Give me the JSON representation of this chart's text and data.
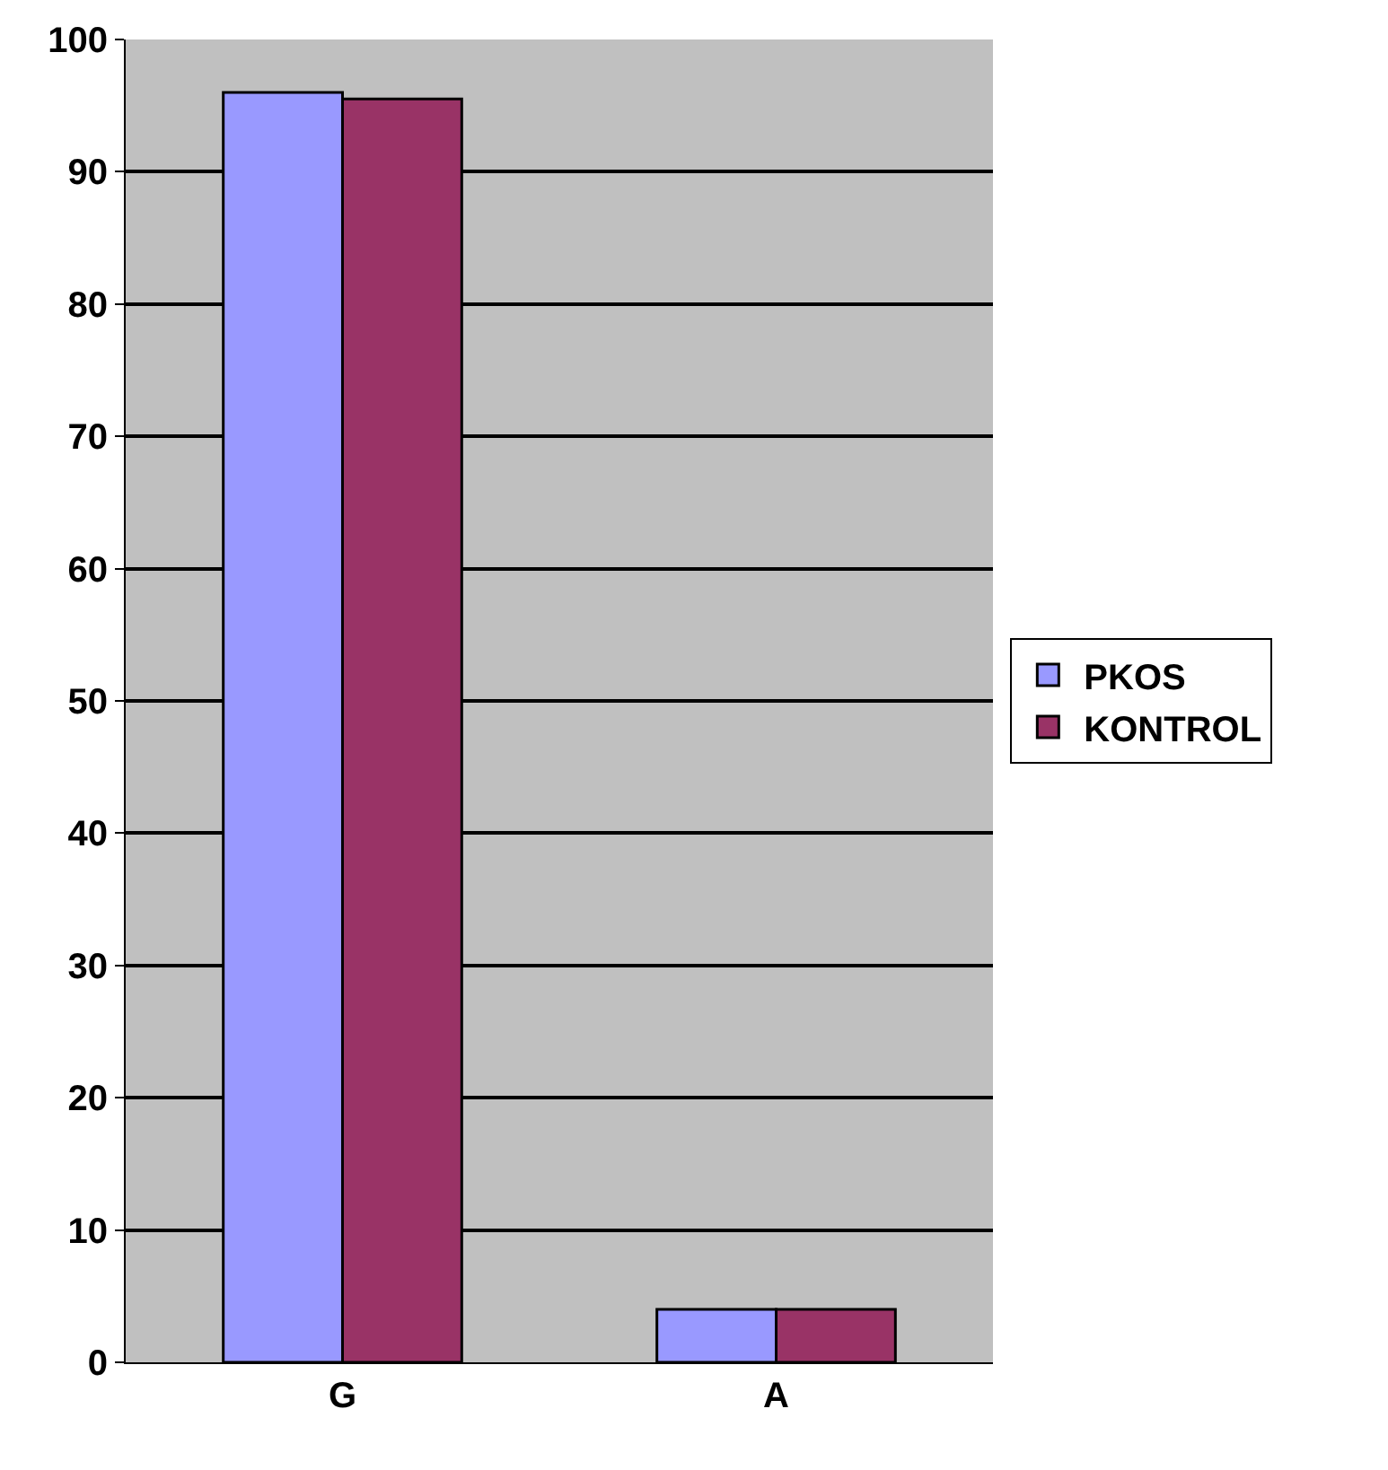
{
  "chart_data": {
    "type": "bar",
    "categories": [
      "G",
      "A"
    ],
    "series": [
      {
        "name": "PKOS",
        "color": "#9999ff",
        "values": [
          96,
          4
        ]
      },
      {
        "name": "KONTROL",
        "color": "#993366",
        "values": [
          95.5,
          4
        ]
      }
    ],
    "ylim": [
      0,
      100
    ],
    "yticks": [
      0,
      10,
      20,
      30,
      40,
      50,
      60,
      70,
      80,
      90,
      100
    ],
    "grid": "y",
    "legend": "right"
  }
}
